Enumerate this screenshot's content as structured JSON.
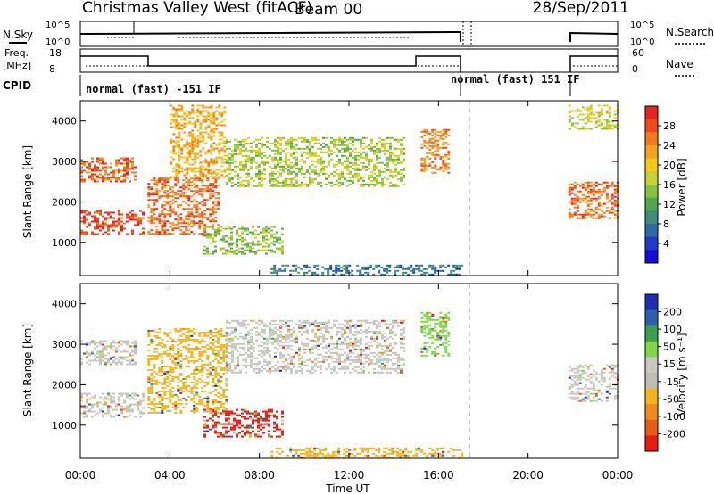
{
  "header": {
    "station": "Christmas Valley West (fitACF)",
    "beam": "Beam 00",
    "date": "28/Sep/2011"
  },
  "strips": {
    "nsky_label": "N.Sky",
    "nsearch_label": "N.Search",
    "freq_label_1": "Freq.",
    "freq_label_2": "[MHz]",
    "nave_label": "Nave",
    "cpid_label": "CPID",
    "nsky_ticks": [
      "10^5",
      "10^0"
    ],
    "nsearch_ticks": [
      "10^5",
      "10^0"
    ],
    "freq_ticks": [
      "18",
      "8"
    ],
    "nave_ticks": [
      "60",
      "0"
    ],
    "cpid_1": "normal (fast) -151 IF",
    "cpid_2": "normal (fast) 151 IF"
  },
  "chart_data": [
    {
      "type": "heatmap",
      "title": "Power",
      "xlabel": "",
      "ylabel": "Slant Range [km]",
      "x_range_hours": [
        0,
        24
      ],
      "ylim": [
        180,
        4500
      ],
      "y_ticks": [
        "1000",
        "2000",
        "3000",
        "4000"
      ],
      "colorbar_label": "Power [dB]",
      "colorbar_ticks": [
        "28",
        "24",
        "20",
        "16",
        "12",
        "8",
        "4"
      ],
      "colorbar_colors": [
        "#e8241c",
        "#f04a18",
        "#f47a1a",
        "#f6a21e",
        "#f4c818",
        "#c8d230",
        "#86c23c",
        "#52a84e",
        "#3e8e7a",
        "#2e6aa4",
        "#1e3cc8",
        "#1010dc"
      ],
      "regions": [
        {
          "t0": 0.0,
          "t1": 2.5,
          "r0": 2500,
          "r1": 3100,
          "level": 0.88
        },
        {
          "t0": 0.0,
          "t1": 2.8,
          "r0": 1200,
          "r1": 1800,
          "level": 0.95
        },
        {
          "t0": 3.0,
          "t1": 6.2,
          "r0": 1200,
          "r1": 2600,
          "level": 0.86
        },
        {
          "t0": 4.0,
          "t1": 6.5,
          "r0": 2600,
          "r1": 4400,
          "level": 0.7
        },
        {
          "t0": 6.5,
          "t1": 14.5,
          "r0": 2400,
          "r1": 3600,
          "level": 0.5
        },
        {
          "t0": 5.5,
          "t1": 9.0,
          "r0": 700,
          "r1": 1400,
          "level": 0.45
        },
        {
          "t0": 15.2,
          "t1": 16.5,
          "r0": 2700,
          "r1": 3800,
          "level": 0.8
        },
        {
          "t0": 21.8,
          "t1": 24.0,
          "r0": 1600,
          "r1": 2500,
          "level": 0.85
        },
        {
          "t0": 21.8,
          "t1": 24.0,
          "r0": 3800,
          "r1": 4400,
          "level": 0.55
        },
        {
          "t0": 8.5,
          "t1": 17.0,
          "r0": 200,
          "r1": 450,
          "level": 0.22
        }
      ]
    },
    {
      "type": "heatmap",
      "title": "Velocity",
      "xlabel": "Time UT",
      "ylabel": "Slant Range [km]",
      "x_range_hours": [
        0,
        24
      ],
      "ylim": [
        180,
        4500
      ],
      "x_ticks": [
        "00:00",
        "04:00",
        "08:00",
        "12:00",
        "16:00",
        "20:00",
        "00:00"
      ],
      "y_ticks": [
        "1000",
        "2000",
        "3000",
        "4000"
      ],
      "colorbar_label": "Velocity [m s⁻¹]",
      "colorbar_ticks": [
        "200",
        "100",
        "50",
        "15",
        "-15",
        "-50",
        "-100",
        "-200"
      ],
      "colorbar_colors": [
        "#1c2fb4",
        "#2e5fb0",
        "#3aa04a",
        "#7ed848",
        "#c8c8c0",
        "#bebeb6",
        "#f4b41c",
        "#f08a1a",
        "#ec5a14",
        "#e81c14"
      ],
      "regions": [
        {
          "t0": 0.0,
          "t1": 2.8,
          "r0": 1200,
          "r1": 1800,
          "color": "#c8c8c0"
        },
        {
          "t0": 0.0,
          "t1": 2.5,
          "r0": 2500,
          "r1": 3100,
          "color": "#c8c8c0"
        },
        {
          "t0": 3.0,
          "t1": 6.5,
          "r0": 1300,
          "r1": 3400,
          "color": "#f4b41c"
        },
        {
          "t0": 6.5,
          "t1": 14.5,
          "r0": 2300,
          "r1": 3600,
          "color": "#c8c8c0"
        },
        {
          "t0": 5.5,
          "t1": 9.0,
          "r0": 700,
          "r1": 1400,
          "color": "#e81c14"
        },
        {
          "t0": 15.2,
          "t1": 16.5,
          "r0": 2700,
          "r1": 3800,
          "color": "#7ed848"
        },
        {
          "t0": 21.8,
          "t1": 24.0,
          "r0": 1600,
          "r1": 2500,
          "color": "#c8c8c0"
        },
        {
          "t0": 8.5,
          "t1": 17.0,
          "r0": 200,
          "r1": 450,
          "color": "#f4b41c"
        }
      ]
    }
  ]
}
